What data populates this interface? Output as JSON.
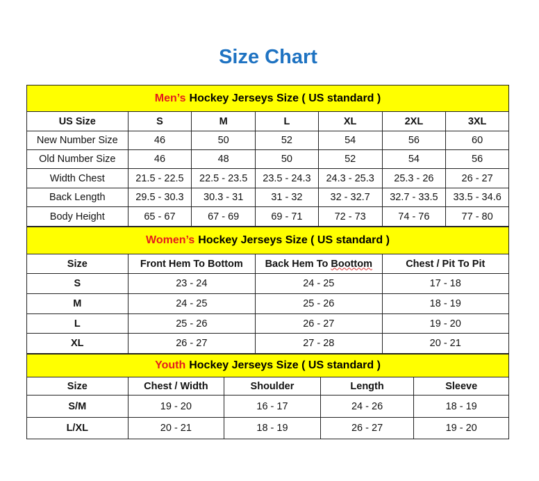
{
  "title": "Size Chart",
  "sections": [
    {
      "highlight": "Men’s",
      "heading": "Hockey Jerseys Size ( US standard )",
      "headers": [
        "US Size",
        "S",
        "M",
        "L",
        "XL",
        "2XL",
        "3XL"
      ],
      "rows": [
        [
          "New Number Size",
          "46",
          "50",
          "52",
          "54",
          "56",
          "60"
        ],
        [
          "Old Number Size",
          "46",
          "48",
          "50",
          "52",
          "54",
          "56"
        ],
        [
          "Width Chest",
          "21.5 - 22.5",
          "22.5 - 23.5",
          "23.5 - 24.3",
          "24.3 - 25.3",
          "25.3 - 26",
          "26 - 27"
        ],
        [
          "Back Length",
          "29.5 - 30.3",
          "30.3 - 31",
          "31 - 32",
          "32 - 32.7",
          "32.7 - 33.5",
          "33.5 - 34.6"
        ],
        [
          "Body Height",
          "65 - 67",
          "67 - 69",
          "69 - 71",
          "72 - 73",
          "74 - 76",
          "77 - 80"
        ]
      ]
    },
    {
      "highlight": "Women’s",
      "heading": "Hockey Jerseys Size ( US standard )",
      "headers": [
        "Size",
        "Front Hem To Bottom",
        "Back Hem To Boottom",
        "Chest / Pit To Pit"
      ],
      "rows": [
        [
          "S",
          "23 - 24",
          "24 - 25",
          "17 - 18"
        ],
        [
          "M",
          "24 - 25",
          "25 - 26",
          "18 - 19"
        ],
        [
          "L",
          "25 - 26",
          "26 - 27",
          "19 - 20"
        ],
        [
          "XL",
          "26 - 27",
          "27 - 28",
          "20 - 21"
        ]
      ]
    },
    {
      "highlight": "Youth",
      "heading": "Hockey Jerseys Size ( US standard )",
      "headers": [
        "Size",
        "Chest / Width",
        "Shoulder",
        "Length",
        "Sleeve"
      ],
      "rows": [
        [
          "S/M",
          "19 - 20",
          "16 - 17",
          "24 - 26",
          "18 - 19"
        ],
        [
          "L/XL",
          "20 - 21",
          "18 - 19",
          "26 - 27",
          "19 - 20"
        ]
      ]
    }
  ],
  "colors": {
    "title": "#1f73c2",
    "band": "#ffff00",
    "highlight": "#e41d1d"
  }
}
